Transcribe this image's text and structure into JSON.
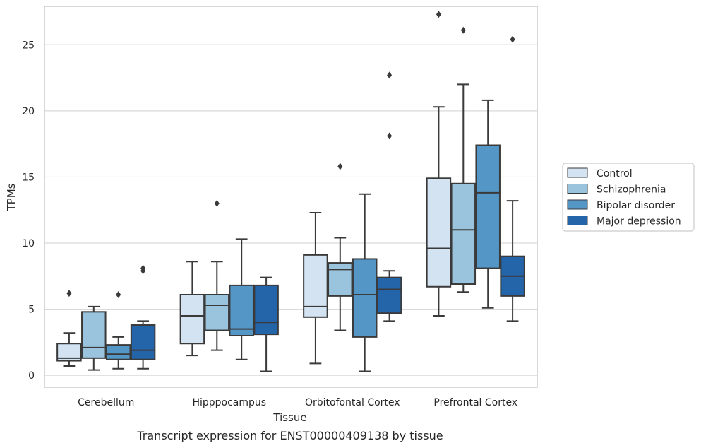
{
  "chart_data": {
    "type": "box",
    "title": "",
    "caption": "Transcript expression for ENST00000409138 by tissue",
    "xlabel": "Tissue",
    "ylabel": "TPMs",
    "ylim": [
      -0.9,
      27.9
    ],
    "yticks": [
      0,
      5,
      10,
      15,
      20,
      25
    ],
    "grid": true,
    "legend_position": "right",
    "categories": [
      "Cerebellum",
      "Hipppocampus",
      "Orbitofontal Cortex",
      "Prefrontal Cortex"
    ],
    "series": [
      {
        "name": "Control",
        "color": "#d3e3f2",
        "boxes": [
          {
            "whislo": 0.7,
            "q1": 1.1,
            "med": 1.3,
            "q3": 2.4,
            "whishi": 3.2,
            "fliers": [
              6.2
            ]
          },
          {
            "whislo": 1.5,
            "q1": 2.4,
            "med": 4.5,
            "q3": 6.1,
            "whishi": 8.6,
            "fliers": []
          },
          {
            "whislo": 0.9,
            "q1": 4.4,
            "med": 5.2,
            "q3": 9.1,
            "whishi": 12.3,
            "fliers": []
          },
          {
            "whislo": 4.5,
            "q1": 6.7,
            "med": 9.6,
            "q3": 14.9,
            "whishi": 20.3,
            "fliers": [
              27.3
            ]
          }
        ]
      },
      {
        "name": "Schizophrenia",
        "color": "#9ac4de",
        "boxes": [
          {
            "whislo": 0.4,
            "q1": 1.3,
            "med": 2.1,
            "q3": 4.8,
            "whishi": 5.2,
            "fliers": []
          },
          {
            "whislo": 1.9,
            "q1": 3.4,
            "med": 5.3,
            "q3": 6.1,
            "whishi": 8.6,
            "fliers": [
              13.0
            ]
          },
          {
            "whislo": 3.4,
            "q1": 6.0,
            "med": 8.0,
            "q3": 8.5,
            "whishi": 10.4,
            "fliers": [
              15.8
            ]
          },
          {
            "whislo": 6.3,
            "q1": 6.9,
            "med": 11.0,
            "q3": 14.5,
            "whishi": 22.0,
            "fliers": [
              26.1
            ]
          }
        ]
      },
      {
        "name": "Bipolar disorder",
        "color": "#5497c6",
        "boxes": [
          {
            "whislo": 0.5,
            "q1": 1.2,
            "med": 1.6,
            "q3": 2.3,
            "whishi": 2.9,
            "fliers": [
              6.1
            ]
          },
          {
            "whislo": 1.2,
            "q1": 3.0,
            "med": 3.5,
            "q3": 6.8,
            "whishi": 10.3,
            "fliers": []
          },
          {
            "whislo": 0.3,
            "q1": 2.9,
            "med": 6.1,
            "q3": 8.8,
            "whishi": 13.7,
            "fliers": []
          },
          {
            "whislo": 5.1,
            "q1": 8.1,
            "med": 13.8,
            "q3": 17.4,
            "whishi": 20.8,
            "fliers": []
          }
        ]
      },
      {
        "name": "Major depression",
        "color": "#2465a9",
        "boxes": [
          {
            "whislo": 0.5,
            "q1": 1.2,
            "med": 1.9,
            "q3": 3.8,
            "whishi": 4.1,
            "fliers": [
              7.9,
              8.1
            ]
          },
          {
            "whislo": 0.3,
            "q1": 3.1,
            "med": 4.0,
            "q3": 6.8,
            "whishi": 7.4,
            "fliers": []
          },
          {
            "whislo": 4.1,
            "q1": 4.7,
            "med": 6.5,
            "q3": 7.4,
            "whishi": 7.9,
            "fliers": [
              18.1,
              22.7
            ]
          },
          {
            "whislo": 4.1,
            "q1": 6.0,
            "med": 7.5,
            "q3": 9.0,
            "whishi": 13.2,
            "fliers": [
              25.4
            ]
          }
        ]
      }
    ]
  }
}
